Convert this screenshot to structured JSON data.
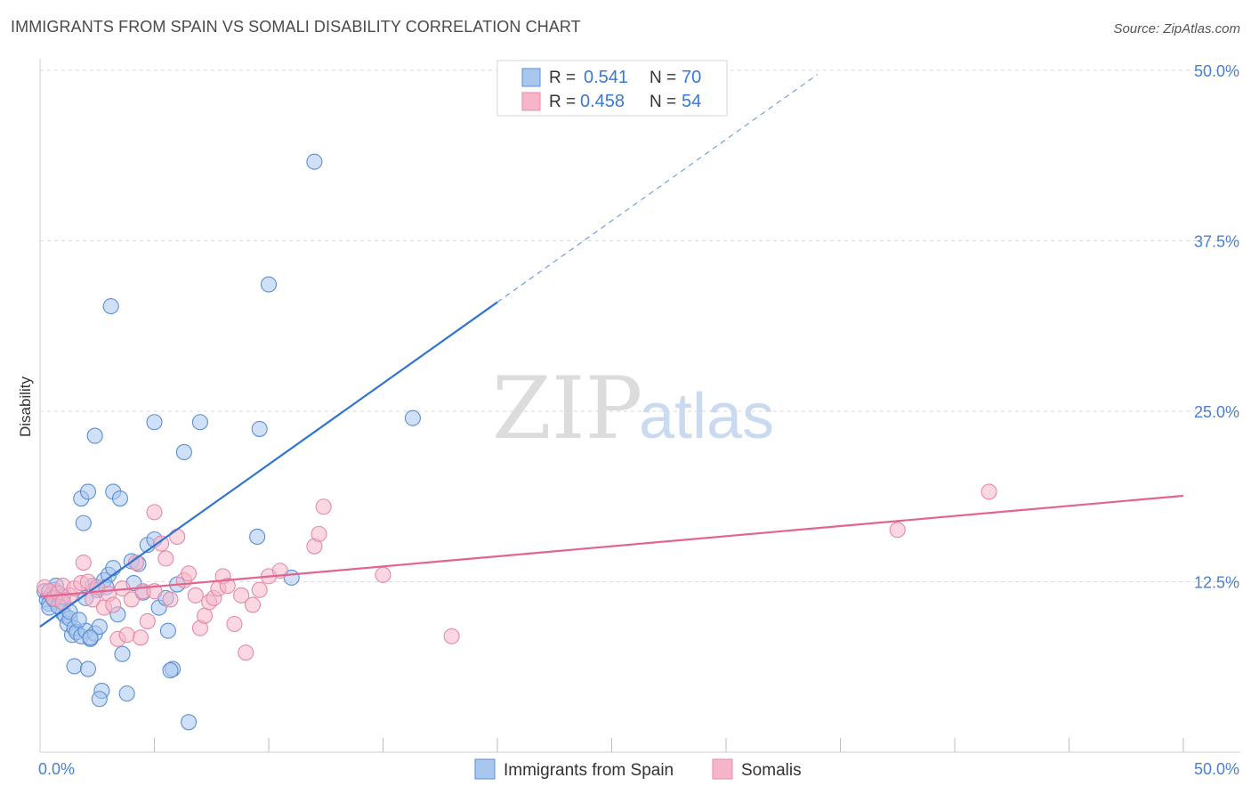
{
  "header": {
    "title": "IMMIGRANTS FROM SPAIN VS SOMALI DISABILITY CORRELATION CHART",
    "source": "Source: ZipAtlas.com"
  },
  "watermark": {
    "zip": "ZIP",
    "atlas": "atlas"
  },
  "colors": {
    "blue_fill": "#a9c7ee",
    "blue_stroke": "#5b8fd6",
    "blue_line": "#2f74d0",
    "pink_fill": "#f6b6c9",
    "pink_stroke": "#e58aa8",
    "pink_line": "#e2648f",
    "grid": "#d9d9d9",
    "tick_text": "#4a7fd0"
  },
  "chart_data": {
    "type": "scatter",
    "title": "IMMIGRANTS FROM SPAIN VS SOMALI DISABILITY CORRELATION CHART",
    "xlabel": "",
    "ylabel": "Disability",
    "xlim": [
      0,
      50
    ],
    "ylim": [
      0,
      50
    ],
    "x_tick_labels": [
      {
        "value": 0,
        "label": "0.0%"
      },
      {
        "value": 50,
        "label": "50.0%"
      }
    ],
    "y_tick_labels": [
      {
        "value": 12.5,
        "label": "12.5%"
      },
      {
        "value": 25,
        "label": "25.0%"
      },
      {
        "value": 37.5,
        "label": "37.5%"
      },
      {
        "value": 50,
        "label": "50.0%"
      }
    ],
    "legend": {
      "placement": "top-center",
      "entries": [
        {
          "r_label": "R =",
          "r_value": "0.541",
          "n_label": "N =",
          "n_value": "70"
        },
        {
          "r_label": "R =",
          "r_value": "0.458",
          "n_label": "N =",
          "n_value": "54"
        }
      ]
    },
    "bottom_legend": [
      "Immigrants from Spain",
      "Somalis"
    ],
    "series": [
      {
        "name": "Immigrants from Spain",
        "color": "#5b8fd6",
        "trend": {
          "x0": 0,
          "y0": 9.2,
          "x1": 20,
          "y1": 33.0,
          "dashed_to_x": 34,
          "dashed_to_y": 49.7
        },
        "points": [
          [
            0.2,
            11.8
          ],
          [
            0.3,
            11.2
          ],
          [
            0.4,
            10.9
          ],
          [
            0.5,
            11.5
          ],
          [
            0.6,
            11.9
          ],
          [
            0.7,
            12.2
          ],
          [
            0.8,
            11.6
          ],
          [
            0.9,
            11.0
          ],
          [
            1.0,
            10.2
          ],
          [
            1.1,
            10.0
          ],
          [
            1.2,
            9.4
          ],
          [
            1.3,
            9.8
          ],
          [
            1.4,
            8.6
          ],
          [
            1.5,
            9.1
          ],
          [
            1.6,
            8.8
          ],
          [
            1.8,
            8.5
          ],
          [
            2.0,
            8.9
          ],
          [
            2.2,
            8.3
          ],
          [
            2.4,
            8.7
          ],
          [
            2.6,
            9.2
          ],
          [
            2.0,
            11.3
          ],
          [
            2.3,
            12.2
          ],
          [
            2.5,
            11.9
          ],
          [
            2.8,
            12.6
          ],
          [
            3.0,
            13.0
          ],
          [
            3.2,
            13.5
          ],
          [
            3.4,
            10.1
          ],
          [
            3.6,
            7.2
          ],
          [
            1.5,
            6.3
          ],
          [
            2.1,
            6.1
          ],
          [
            2.7,
            4.5
          ],
          [
            2.6,
            3.9
          ],
          [
            3.8,
            4.3
          ],
          [
            4.0,
            14.0
          ],
          [
            4.3,
            13.8
          ],
          [
            4.5,
            11.7
          ],
          [
            4.1,
            12.4
          ],
          [
            4.7,
            15.2
          ],
          [
            5.0,
            15.6
          ],
          [
            5.2,
            10.6
          ],
          [
            5.5,
            11.3
          ],
          [
            5.6,
            8.9
          ],
          [
            5.8,
            6.1
          ],
          [
            5.7,
            6.0
          ],
          [
            6.0,
            12.3
          ],
          [
            6.5,
            2.2
          ],
          [
            1.8,
            18.6
          ],
          [
            2.1,
            19.1
          ],
          [
            2.4,
            23.2
          ],
          [
            3.2,
            19.1
          ],
          [
            3.5,
            18.6
          ],
          [
            1.9,
            16.8
          ],
          [
            3.1,
            32.7
          ],
          [
            5.0,
            24.2
          ],
          [
            6.3,
            22.0
          ],
          [
            7.0,
            24.2
          ],
          [
            9.6,
            23.7
          ],
          [
            9.5,
            15.8
          ],
          [
            11.0,
            12.8
          ],
          [
            10.0,
            34.3
          ],
          [
            12.0,
            43.3
          ],
          [
            16.3,
            24.5
          ],
          [
            0.4,
            10.6
          ],
          [
            0.6,
            11.2
          ],
          [
            0.8,
            10.7
          ],
          [
            1.0,
            11.4
          ],
          [
            1.3,
            10.3
          ],
          [
            1.7,
            9.7
          ],
          [
            2.9,
            12.1
          ],
          [
            2.2,
            8.4
          ]
        ]
      },
      {
        "name": "Somalis",
        "color": "#e58aa8",
        "trend": {
          "x0": 0,
          "y0": 11.4,
          "x1": 50,
          "y1": 18.8
        },
        "points": [
          [
            0.2,
            12.1
          ],
          [
            0.4,
            11.8
          ],
          [
            0.6,
            11.3
          ],
          [
            0.8,
            11.7
          ],
          [
            1.0,
            12.2
          ],
          [
            1.3,
            11.5
          ],
          [
            1.5,
            12.0
          ],
          [
            1.8,
            12.4
          ],
          [
            1.9,
            13.9
          ],
          [
            2.1,
            12.5
          ],
          [
            2.3,
            11.2
          ],
          [
            2.5,
            12.1
          ],
          [
            2.8,
            10.6
          ],
          [
            3.0,
            11.6
          ],
          [
            3.2,
            10.8
          ],
          [
            3.4,
            8.3
          ],
          [
            3.6,
            12.0
          ],
          [
            3.8,
            8.6
          ],
          [
            4.0,
            11.2
          ],
          [
            4.2,
            13.9
          ],
          [
            4.4,
            8.4
          ],
          [
            4.5,
            11.8
          ],
          [
            4.7,
            9.6
          ],
          [
            5.0,
            11.8
          ],
          [
            5.0,
            17.6
          ],
          [
            5.3,
            15.3
          ],
          [
            5.5,
            14.2
          ],
          [
            5.7,
            11.2
          ],
          [
            6.0,
            15.8
          ],
          [
            6.3,
            12.6
          ],
          [
            6.5,
            13.1
          ],
          [
            6.8,
            11.5
          ],
          [
            7.0,
            9.1
          ],
          [
            7.2,
            10.0
          ],
          [
            7.4,
            11.0
          ],
          [
            7.6,
            11.3
          ],
          [
            7.8,
            12.0
          ],
          [
            8.0,
            12.9
          ],
          [
            8.2,
            12.2
          ],
          [
            8.5,
            9.4
          ],
          [
            8.8,
            11.5
          ],
          [
            9.0,
            7.3
          ],
          [
            9.3,
            10.8
          ],
          [
            9.6,
            11.9
          ],
          [
            10.0,
            12.9
          ],
          [
            10.5,
            13.3
          ],
          [
            12.0,
            15.1
          ],
          [
            12.2,
            16.0
          ],
          [
            12.4,
            18.0
          ],
          [
            15.0,
            13.0
          ],
          [
            18.0,
            8.5
          ],
          [
            37.5,
            16.3
          ],
          [
            41.5,
            19.1
          ],
          [
            1.0,
            11.0
          ]
        ]
      }
    ]
  }
}
